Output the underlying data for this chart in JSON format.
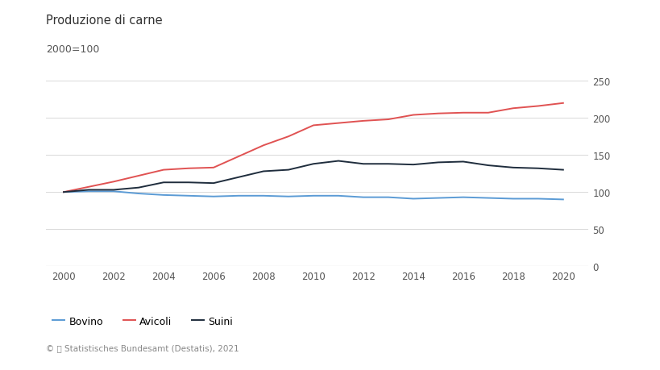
{
  "title": "Produzione di carne",
  "subtitle": "2000=100",
  "footer": "© 📈 Statistisches Bundesamt (Destatis), 2021",
  "years": [
    2000,
    2001,
    2002,
    2003,
    2004,
    2005,
    2006,
    2007,
    2008,
    2009,
    2010,
    2011,
    2012,
    2013,
    2014,
    2015,
    2016,
    2017,
    2018,
    2019,
    2020
  ],
  "bovino": [
    100,
    101,
    101,
    98,
    96,
    95,
    94,
    95,
    95,
    94,
    95,
    95,
    93,
    93,
    91,
    92,
    93,
    92,
    91,
    91,
    90
  ],
  "avicoli": [
    100,
    107,
    114,
    122,
    130,
    132,
    133,
    148,
    163,
    175,
    190,
    193,
    196,
    198,
    204,
    206,
    207,
    207,
    213,
    216,
    220
  ],
  "suini": [
    100,
    103,
    103,
    106,
    113,
    113,
    112,
    120,
    128,
    130,
    138,
    142,
    138,
    138,
    137,
    140,
    141,
    136,
    133,
    132,
    130
  ],
  "bovino_color": "#5b9bd5",
  "avicoli_color": "#e05252",
  "suini_color": "#1f2d3d",
  "background_color": "#ffffff",
  "grid_color": "#d9d9d9",
  "ylim": [
    0,
    260
  ],
  "yticks": [
    0,
    50,
    100,
    150,
    200,
    250
  ],
  "xticks": [
    2000,
    2002,
    2004,
    2006,
    2008,
    2010,
    2012,
    2014,
    2016,
    2018,
    2020
  ],
  "xlim": [
    1999.3,
    2021.0
  ]
}
